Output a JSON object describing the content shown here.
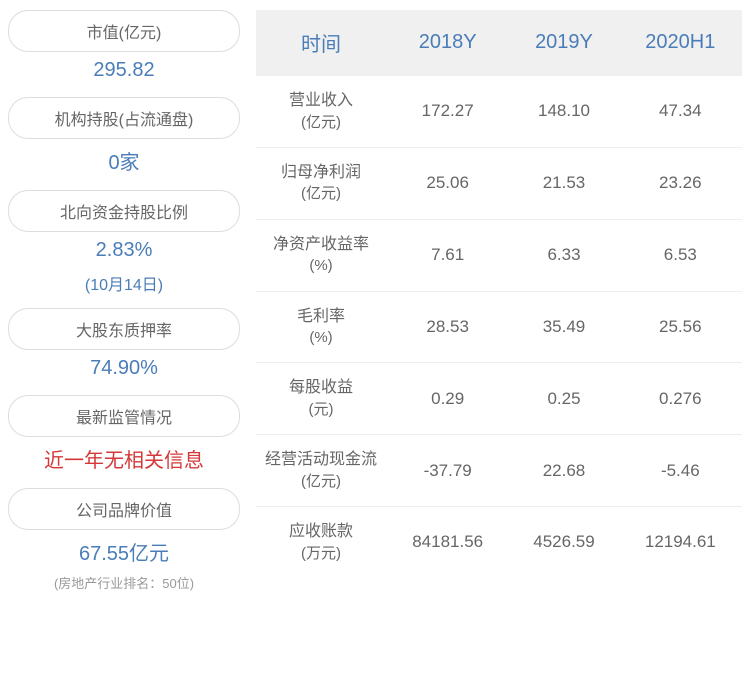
{
  "colors": {
    "blue": "#4a7db8",
    "red": "#d43838",
    "gray_text": "#666666",
    "light_gray": "#999999",
    "border": "#dddddd",
    "header_bg": "#f0f0f0",
    "row_border": "#eeeeee",
    "bg": "#ffffff"
  },
  "left_metrics": [
    {
      "label": "市值(亿元)",
      "value": "295.82",
      "value_color": "blue"
    },
    {
      "label": "机构持股(占流通盘)",
      "value": "0家",
      "value_color": "blue"
    },
    {
      "label": "北向资金持股比例",
      "value": "2.83%",
      "subtext": "(10月14日)",
      "value_color": "blue"
    },
    {
      "label": "大股东质押率",
      "value": "74.90%",
      "value_color": "blue"
    },
    {
      "label": "最新监管情况",
      "value": "近一年无相关信息",
      "value_color": "red"
    },
    {
      "label": "公司品牌价值",
      "value": "67.55亿元",
      "footnote": "(房地产行业排名：50位)",
      "value_color": "blue"
    }
  ],
  "table": {
    "header": {
      "time_label": "时间",
      "columns": [
        "2018Y",
        "2019Y",
        "2020H1"
      ]
    },
    "rows": [
      {
        "label": "营业收入",
        "unit": "(亿元)",
        "values": [
          "172.27",
          "148.10",
          "47.34"
        ]
      },
      {
        "label": "归母净利润",
        "unit": "(亿元)",
        "values": [
          "25.06",
          "21.53",
          "23.26"
        ]
      },
      {
        "label": "净资产收益率",
        "unit": "(%)",
        "values": [
          "7.61",
          "6.33",
          "6.53"
        ]
      },
      {
        "label": "毛利率",
        "unit": "(%)",
        "values": [
          "28.53",
          "35.49",
          "25.56"
        ]
      },
      {
        "label": "每股收益",
        "unit": "(元)",
        "values": [
          "0.29",
          "0.25",
          "0.276"
        ]
      },
      {
        "label": "经营活动现金流",
        "unit": "(亿元)",
        "values": [
          "-37.79",
          "22.68",
          "-5.46"
        ]
      },
      {
        "label": "应收账款",
        "unit": "(万元)",
        "values": [
          "84181.56",
          "4526.59",
          "12194.61"
        ]
      }
    ]
  }
}
